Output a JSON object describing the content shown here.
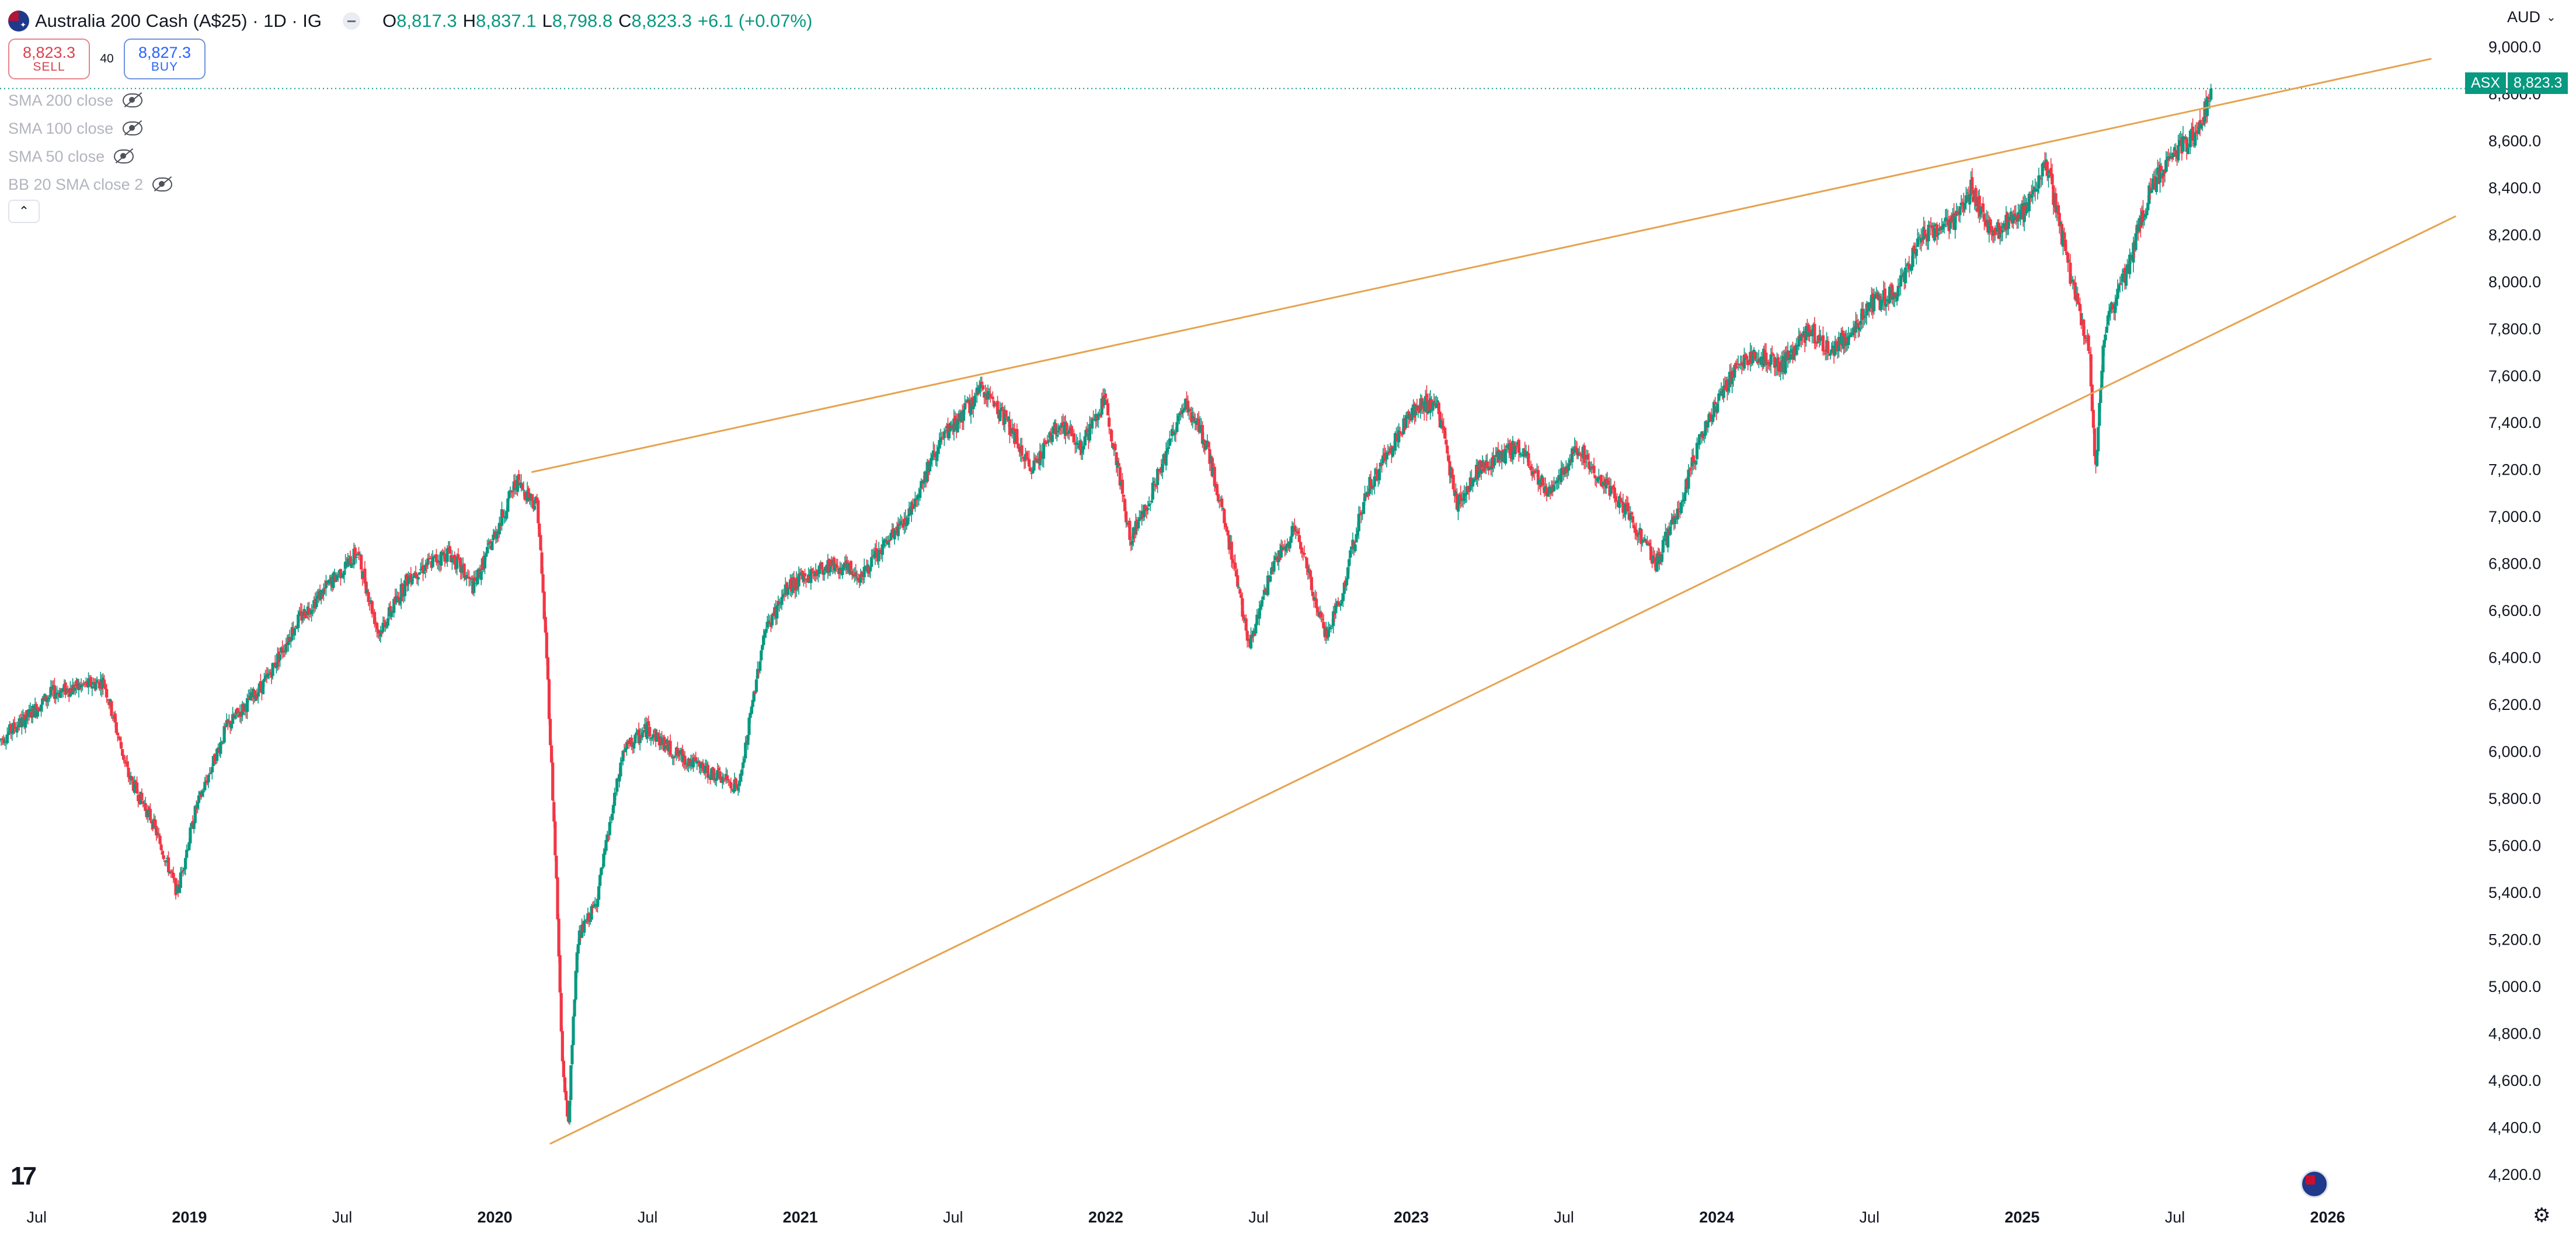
{
  "header": {
    "symbol_title": "Australia 200 Cash (A$25) · 1D · IG",
    "ohlc": {
      "o_label": "O",
      "o_value": "8,817.3",
      "h_label": "H",
      "h_value": "8,837.1",
      "l_label": "L",
      "l_value": "8,798.8",
      "c_label": "C",
      "c_value": "8,823.3",
      "change": "+6.1 (+0.07%)"
    },
    "currency": "AUD"
  },
  "trade": {
    "sell_price": "8,823.3",
    "sell_label": "SELL",
    "spread": "40",
    "buy_price": "8,827.3",
    "buy_label": "BUY"
  },
  "indicators": [
    {
      "label": "SMA 200 close",
      "icon": "eye-hidden-icon"
    },
    {
      "label": "SMA 100 close",
      "icon": "eye-hidden-icon"
    },
    {
      "label": "SMA 50 close",
      "icon": "eye-hidden-icon"
    },
    {
      "label": "BB 20 SMA close 2",
      "icon": "eye-hidden-icon"
    }
  ],
  "price_tag": {
    "symbol": "ASX",
    "price": "8,823.3"
  },
  "logo_text": "17",
  "colors": {
    "up": "#089981",
    "down": "#f23645",
    "trendline": "#e6a350",
    "last_price_line": "#089981"
  },
  "chart_data": {
    "type": "candlestick",
    "title": "Australia 200 Cash (A$25) · 1D · IG",
    "xlabel": "",
    "ylabel": "AUD",
    "y_axis_side": "right",
    "x_range": [
      2018.38,
      2026.45
    ],
    "y_range": [
      4100,
      9200
    ],
    "y_ticks": [
      4200,
      4400,
      4600,
      4800,
      5000,
      5200,
      5400,
      5600,
      5800,
      6000,
      6200,
      6400,
      6600,
      6800,
      7000,
      7200,
      7400,
      7600,
      7800,
      8000,
      8200,
      8400,
      8600,
      8800,
      9000
    ],
    "y_tick_labels": [
      "4,200.0",
      "4,400.0",
      "4,600.0",
      "4,800.0",
      "5,000.0",
      "5,200.0",
      "5,400.0",
      "5,600.0",
      "5,800.0",
      "6,000.0",
      "6,200.0",
      "6,400.0",
      "6,600.0",
      "6,800.0",
      "7,000.0",
      "7,200.0",
      "7,400.0",
      "7,600.0",
      "7,800.0",
      "8,000.0",
      "8,200.0",
      "8,400.0",
      "8,600.0",
      "8,800.0",
      "9,000.0"
    ],
    "x_ticks": [
      {
        "t": 2018.5,
        "label": "Jul",
        "bold": false
      },
      {
        "t": 2019.0,
        "label": "2019",
        "bold": true
      },
      {
        "t": 2019.5,
        "label": "Jul",
        "bold": false
      },
      {
        "t": 2020.0,
        "label": "2020",
        "bold": true
      },
      {
        "t": 2020.5,
        "label": "Jul",
        "bold": false
      },
      {
        "t": 2021.0,
        "label": "2021",
        "bold": true
      },
      {
        "t": 2021.5,
        "label": "Jul",
        "bold": false
      },
      {
        "t": 2022.0,
        "label": "2022",
        "bold": true
      },
      {
        "t": 2022.5,
        "label": "Jul",
        "bold": false
      },
      {
        "t": 2023.0,
        "label": "2023",
        "bold": true
      },
      {
        "t": 2023.5,
        "label": "Jul",
        "bold": false
      },
      {
        "t": 2024.0,
        "label": "2024",
        "bold": true
      },
      {
        "t": 2024.5,
        "label": "Jul",
        "bold": false
      },
      {
        "t": 2025.0,
        "label": "2025",
        "bold": true
      },
      {
        "t": 2025.5,
        "label": "Jul",
        "bold": false
      },
      {
        "t": 2026.0,
        "label": "2026",
        "bold": true
      }
    ],
    "last_price": 8823.3,
    "price_path": [
      [
        2018.38,
        6050
      ],
      [
        2018.47,
        6150
      ],
      [
        2018.55,
        6250
      ],
      [
        2018.72,
        6300
      ],
      [
        2018.8,
        5900
      ],
      [
        2018.88,
        5700
      ],
      [
        2018.96,
        5400
      ],
      [
        2019.02,
        5750
      ],
      [
        2019.12,
        6100
      ],
      [
        2019.25,
        6300
      ],
      [
        2019.35,
        6550
      ],
      [
        2019.45,
        6700
      ],
      [
        2019.55,
        6850
      ],
      [
        2019.62,
        6500
      ],
      [
        2019.72,
        6750
      ],
      [
        2019.85,
        6850
      ],
      [
        2019.93,
        6700
      ],
      [
        2020.07,
        7150
      ],
      [
        2020.14,
        7050
      ],
      [
        2020.17,
        6400
      ],
      [
        2020.2,
        5500
      ],
      [
        2020.22,
        4700
      ],
      [
        2020.24,
        4400
      ],
      [
        2020.27,
        5200
      ],
      [
        2020.33,
        5350
      ],
      [
        2020.42,
        6000
      ],
      [
        2020.5,
        6100
      ],
      [
        2020.58,
        6000
      ],
      [
        2020.72,
        5900
      ],
      [
        2020.8,
        5850
      ],
      [
        2020.88,
        6500
      ],
      [
        2020.96,
        6700
      ],
      [
        2021.1,
        6800
      ],
      [
        2021.2,
        6750
      ],
      [
        2021.35,
        7000
      ],
      [
        2021.45,
        7300
      ],
      [
        2021.6,
        7550
      ],
      [
        2021.68,
        7400
      ],
      [
        2021.75,
        7200
      ],
      [
        2021.85,
        7400
      ],
      [
        2021.92,
        7300
      ],
      [
        2022.0,
        7500
      ],
      [
        2022.08,
        6900
      ],
      [
        2022.15,
        7100
      ],
      [
        2022.26,
        7500
      ],
      [
        2022.33,
        7300
      ],
      [
        2022.42,
        6800
      ],
      [
        2022.47,
        6450
      ],
      [
        2022.55,
        6800
      ],
      [
        2022.62,
        6950
      ],
      [
        2022.72,
        6500
      ],
      [
        2022.77,
        6650
      ],
      [
        2022.85,
        7100
      ],
      [
        2023.0,
        7450
      ],
      [
        2023.08,
        7500
      ],
      [
        2023.15,
        7050
      ],
      [
        2023.22,
        7200
      ],
      [
        2023.35,
        7300
      ],
      [
        2023.45,
        7100
      ],
      [
        2023.55,
        7300
      ],
      [
        2023.62,
        7150
      ],
      [
        2023.72,
        7000
      ],
      [
        2023.8,
        6800
      ],
      [
        2023.88,
        7050
      ],
      [
        2023.95,
        7350
      ],
      [
        2024.05,
        7600
      ],
      [
        2024.12,
        7700
      ],
      [
        2024.22,
        7650
      ],
      [
        2024.3,
        7800
      ],
      [
        2024.38,
        7700
      ],
      [
        2024.5,
        7900
      ],
      [
        2024.58,
        7950
      ],
      [
        2024.68,
        8200
      ],
      [
        2024.78,
        8250
      ],
      [
        2024.83,
        8400
      ],
      [
        2024.9,
        8200
      ],
      [
        2025.0,
        8300
      ],
      [
        2025.08,
        8500
      ],
      [
        2025.13,
        8200
      ],
      [
        2025.18,
        7900
      ],
      [
        2025.22,
        7700
      ],
      [
        2025.24,
        7200
      ],
      [
        2025.27,
        7800
      ],
      [
        2025.33,
        8000
      ],
      [
        2025.42,
        8400
      ],
      [
        2025.5,
        8550
      ],
      [
        2025.58,
        8650
      ],
      [
        2025.62,
        8823.3
      ]
    ],
    "series": [
      {
        "name": "Upper trendline",
        "points": [
          [
            2020.12,
            7190
          ],
          [
            2026.34,
            8950
          ]
        ]
      },
      {
        "name": "Lower trendline",
        "points": [
          [
            2020.18,
            4330
          ],
          [
            2026.42,
            8280
          ]
        ]
      }
    ]
  }
}
